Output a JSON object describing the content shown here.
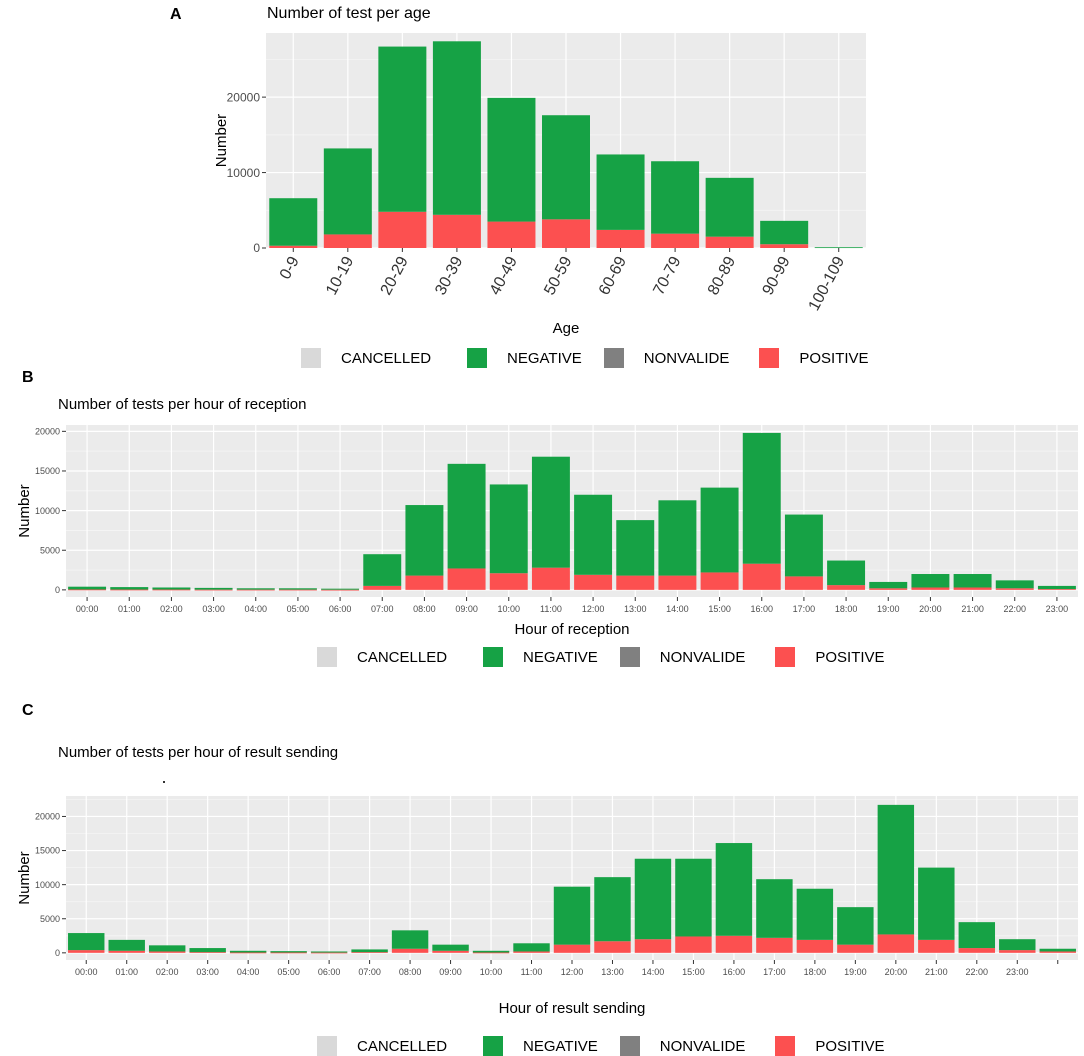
{
  "colors": {
    "panel_bg": "#ebebeb",
    "grid_major": "#ffffff",
    "grid_minor": "#f5f5f5",
    "cancelled": "#d9d9d9",
    "negative": "#16a245",
    "nonvalide": "#808080",
    "positive": "#fc5050"
  },
  "legend": {
    "items": [
      {
        "label": "CANCELLED",
        "color": "#d9d9d9"
      },
      {
        "label": "NEGATIVE",
        "color": "#16a245"
      },
      {
        "label": "NONVALIDE",
        "color": "#808080"
      },
      {
        "label": "POSITIVE",
        "color": "#fc5050"
      }
    ]
  },
  "panels": {
    "a": {
      "letter": "A"
    },
    "b": {
      "letter": "B"
    },
    "c": {
      "letter": "C"
    }
  },
  "chart_data": [
    {
      "id": "a",
      "type": "bar",
      "stacked": true,
      "title": "Number of test per age",
      "xlabel": "Age",
      "ylabel": "Number",
      "ylim": [
        0,
        28500
      ],
      "yticks": [
        0,
        10000,
        20000
      ],
      "ytick_labels": [
        "0",
        "10000",
        "20000"
      ],
      "categories": [
        "0-9",
        "10-19",
        "20-29",
        "30-39",
        "40-49",
        "50-59",
        "60-69",
        "70-79",
        "80-89",
        "90-99",
        "100-109"
      ],
      "series": [
        {
          "name": "POSITIVE",
          "values": [
            300,
            1800,
            4800,
            4400,
            3500,
            3800,
            2400,
            1900,
            1500,
            500,
            0
          ]
        },
        {
          "name": "NEGATIVE",
          "values": [
            6300,
            11400,
            21900,
            23000,
            16400,
            13800,
            10000,
            9600,
            7800,
            3100,
            100
          ]
        }
      ]
    },
    {
      "id": "b",
      "type": "bar",
      "stacked": true,
      "title": "Number of tests per hour of reception",
      "xlabel": "Hour of reception",
      "ylabel": "Number",
      "ylim": [
        -900,
        20800
      ],
      "yticks": [
        0,
        5000,
        10000,
        15000,
        20000
      ],
      "ytick_labels": [
        "0",
        "5000",
        "10000",
        "15000",
        "20000"
      ],
      "categories": [
        "00:00",
        "01:00",
        "02:00",
        "03:00",
        "04:00",
        "05:00",
        "06:00",
        "07:00",
        "08:00",
        "09:00",
        "10:00",
        "11:00",
        "12:00",
        "13:00",
        "14:00",
        "15:00",
        "16:00",
        "17:00",
        "18:00",
        "19:00",
        "20:00",
        "21:00",
        "22:00",
        "23:00"
      ],
      "series": [
        {
          "name": "POSITIVE",
          "values": [
            50,
            40,
            40,
            30,
            30,
            30,
            20,
            500,
            1800,
            2700,
            2100,
            2800,
            1900,
            1800,
            1800,
            2200,
            3300,
            1700,
            600,
            200,
            300,
            300,
            200,
            100
          ]
        },
        {
          "name": "NEGATIVE",
          "values": [
            350,
            310,
            260,
            220,
            170,
            170,
            130,
            4000,
            8900,
            13200,
            11200,
            14000,
            10100,
            7000,
            9500,
            10700,
            16500,
            7800,
            3100,
            800,
            1700,
            1700,
            1000,
            400
          ]
        }
      ]
    },
    {
      "id": "c",
      "type": "bar",
      "stacked": true,
      "title": "Number of tests per hour of result sending",
      "xlabel": "Hour of result sending",
      "ylabel": "Number",
      "ylim": [
        -1050,
        23000
      ],
      "yticks": [
        0,
        5000,
        10000,
        15000,
        20000
      ],
      "ytick_labels": [
        "0",
        "5000",
        "10000",
        "15000",
        "20000"
      ],
      "categories": [
        "00:00",
        "01:00",
        "02:00",
        "03:00",
        "04:00",
        "05:00",
        "06:00",
        "07:00",
        "08:00",
        "09:00",
        "10:00",
        "11:00",
        "12:00",
        "13:00",
        "14:00",
        "15:00",
        "16:00",
        "17:00",
        "18:00",
        "19:00",
        "20:00",
        "21:00",
        "22:00",
        "23:00",
        ""
      ],
      "series": [
        {
          "name": "POSITIVE",
          "values": [
            400,
            300,
            200,
            100,
            50,
            50,
            40,
            100,
            600,
            300,
            50,
            200,
            1200,
            1700,
            2000,
            2400,
            2500,
            2200,
            1900,
            1200,
            2700,
            1900,
            700,
            400,
            200
          ]
        },
        {
          "name": "NEGATIVE",
          "values": [
            2500,
            1600,
            900,
            600,
            250,
            200,
            160,
            400,
            2700,
            900,
            250,
            1200,
            8500,
            9400,
            11800,
            11400,
            13600,
            8600,
            7500,
            5500,
            19000,
            10600,
            3800,
            1600,
            400
          ]
        }
      ]
    }
  ]
}
